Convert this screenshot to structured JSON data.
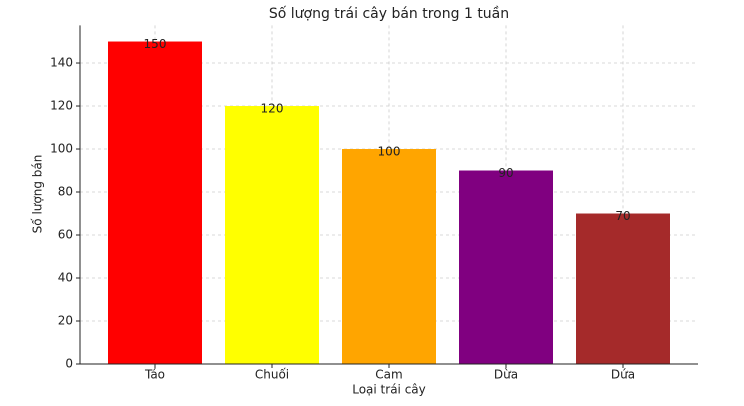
{
  "chart_data": {
    "type": "bar",
    "title": "Số lượng trái cây bán trong 1 tuần",
    "x_label": "Loại trái cây",
    "y_label": "Số lượng bán",
    "categories": [
      "Táo",
      "Chuối",
      "Cam",
      "Dừa",
      "Dứa"
    ],
    "values": [
      150,
      120,
      100,
      90,
      70
    ],
    "colors": [
      "#ff0000",
      "#ffff00",
      "#ffa500",
      "#800080",
      "#a52a2a"
    ],
    "ylim": [
      0,
      157.5
    ],
    "yticks": [
      0,
      20,
      40,
      60,
      80,
      100,
      120,
      140
    ],
    "grid": true
  }
}
